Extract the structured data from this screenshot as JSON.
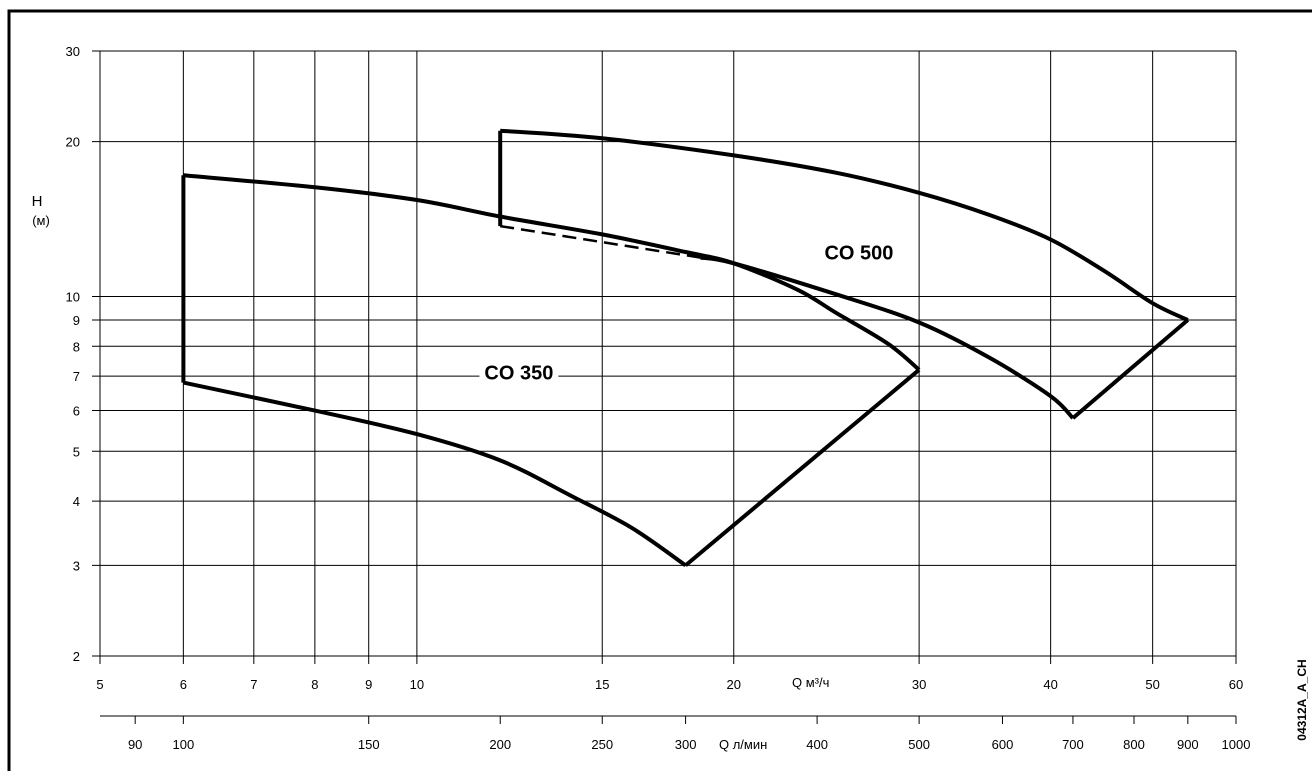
{
  "chart_data": {
    "type": "area",
    "scale": {
      "x": "log",
      "y": "log"
    },
    "grid": true,
    "xlabel_m3h": "Q  м³/ч",
    "xlabel_lmin": "Q  л/мин",
    "ylabel": "H",
    "ylabel_unit": "(м)",
    "xlim": [
      5,
      60
    ],
    "ylim": [
      2,
      30
    ],
    "x_ticks_m3h": [
      5,
      6,
      7,
      8,
      9,
      10,
      15,
      20,
      30,
      40,
      50,
      60
    ],
    "x_ticks_lmin": [
      90,
      100,
      150,
      200,
      250,
      300,
      400,
      500,
      600,
      700,
      800,
      900,
      1000
    ],
    "y_ticks": [
      2,
      3,
      4,
      5,
      6,
      7,
      8,
      9,
      10,
      20,
      30
    ],
    "series": [
      {
        "name": "CO 350",
        "top": [
          [
            6,
            17.2
          ],
          [
            8,
            16.3
          ],
          [
            10,
            15.4
          ],
          [
            12,
            14.3
          ],
          [
            15,
            13.2
          ],
          [
            18,
            12.2
          ],
          [
            20,
            11.6
          ],
          [
            23,
            10.3
          ],
          [
            25,
            9.3
          ],
          [
            28,
            8.1
          ],
          [
            30,
            7.2
          ]
        ],
        "bottom": [
          [
            6,
            6.8
          ],
          [
            8,
            6.0
          ],
          [
            10,
            5.4
          ],
          [
            12,
            4.8
          ],
          [
            14,
            4.1
          ],
          [
            16,
            3.55
          ],
          [
            18,
            3.0
          ]
        ],
        "closing_edge": [
          [
            18,
            3.0
          ],
          [
            30,
            7.2
          ]
        ]
      },
      {
        "name": "CO 500",
        "top": [
          [
            12,
            21.0
          ],
          [
            15,
            20.3
          ],
          [
            20,
            18.8
          ],
          [
            25,
            17.4
          ],
          [
            30,
            15.9
          ],
          [
            35,
            14.4
          ],
          [
            40,
            12.9
          ],
          [
            45,
            11.2
          ],
          [
            50,
            9.7
          ],
          [
            54,
            9.0
          ]
        ],
        "bottom": [
          [
            12,
            13.7
          ],
          [
            15,
            13.0
          ],
          [
            20,
            11.6
          ],
          [
            25,
            10.1
          ],
          [
            30,
            8.9
          ],
          [
            35,
            7.6
          ],
          [
            40,
            6.4
          ],
          [
            42,
            5.8
          ]
        ],
        "dashed_segment": [
          [
            12,
            13.7
          ],
          [
            18.6,
            11.9
          ]
        ],
        "closing_edge": [
          [
            42,
            5.8
          ],
          [
            54,
            9.0
          ]
        ]
      }
    ],
    "drawing_code": "04312A_A_CH"
  }
}
